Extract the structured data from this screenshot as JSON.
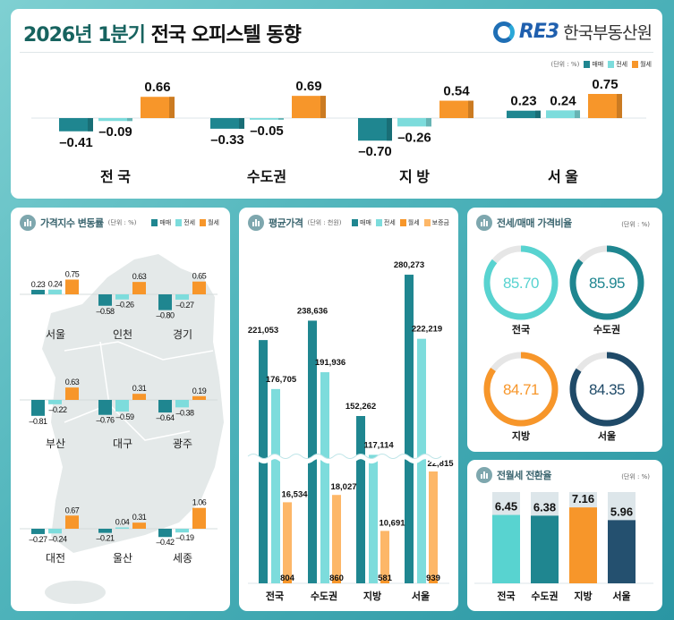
{
  "header": {
    "title_highlight": "2026년 1분기",
    "title_rest": "전국 오피스텔 동향",
    "logo_mark": "RE3",
    "logo_text": "한국부동산원"
  },
  "colors": {
    "매매": "#1f8690",
    "전세": "#7ddcdc",
    "월세": "#f7962a",
    "보증금": "#fdb768",
    "ratio": [
      "#58d3d0",
      "#1f8690",
      "#f7962a",
      "#1f4a68"
    ],
    "conversion": [
      "#58d3d0",
      "#1f8690",
      "#f7962a",
      "#24506f"
    ]
  },
  "chart_data": [
    {
      "type": "bar",
      "unit": "(단위 : %)",
      "legend": [
        "매매",
        "전세",
        "월세"
      ],
      "categories": [
        "전 국",
        "수도권",
        "지 방",
        "서 울"
      ],
      "series": [
        {
          "name": "매매",
          "values": [
            -0.41,
            -0.33,
            -0.7,
            0.23
          ]
        },
        {
          "name": "전세",
          "values": [
            -0.09,
            -0.05,
            -0.26,
            0.24
          ]
        },
        {
          "name": "월세",
          "values": [
            0.66,
            0.69,
            0.54,
            0.75
          ]
        }
      ]
    },
    {
      "type": "bar",
      "title": "가격지수 변동률",
      "unit": "(단위 : %)",
      "legend": [
        "매매",
        "전세",
        "월세"
      ],
      "categories": [
        "서울",
        "인천",
        "경기",
        "부산",
        "대구",
        "광주",
        "대전",
        "울산",
        "세종"
      ],
      "series": [
        {
          "name": "매매",
          "values": [
            0.23,
            -0.58,
            -0.8,
            -0.81,
            -0.76,
            -0.64,
            -0.27,
            -0.21,
            -0.42
          ]
        },
        {
          "name": "전세",
          "values": [
            0.24,
            -0.26,
            -0.27,
            -0.22,
            -0.59,
            -0.38,
            -0.24,
            0.04,
            -0.19
          ]
        },
        {
          "name": "월세",
          "values": [
            0.75,
            0.63,
            0.65,
            0.63,
            0.31,
            0.19,
            0.67,
            0.31,
            1.06
          ]
        }
      ]
    },
    {
      "type": "bar",
      "title": "평균가격",
      "unit": "(단위 : 천원)",
      "legend": [
        "매매",
        "전세",
        "월세",
        "보증금"
      ],
      "categories": [
        "전국",
        "수도권",
        "지방",
        "서울"
      ],
      "axis_break": true,
      "series": [
        {
          "name": "매매",
          "values": [
            221053,
            238636,
            152262,
            280273
          ]
        },
        {
          "name": "전세",
          "values": [
            176705,
            191936,
            117114,
            222219
          ]
        },
        {
          "name": "월세",
          "values": [
            804,
            860,
            581,
            939
          ]
        },
        {
          "name": "보증금",
          "values": [
            16534,
            18027,
            10691,
            22815
          ]
        }
      ]
    },
    {
      "type": "pie",
      "title": "전세/매매 가격비율",
      "unit": "(단위 : %)",
      "categories": [
        "전국",
        "수도권",
        "지방",
        "서울"
      ],
      "values": [
        85.7,
        85.95,
        84.71,
        84.35
      ]
    },
    {
      "type": "bar",
      "title": "전월세 전환율",
      "unit": "(단위 : %)",
      "categories": [
        "전국",
        "수도권",
        "지방",
        "서울"
      ],
      "values": [
        6.45,
        6.38,
        7.16,
        5.96
      ]
    }
  ]
}
